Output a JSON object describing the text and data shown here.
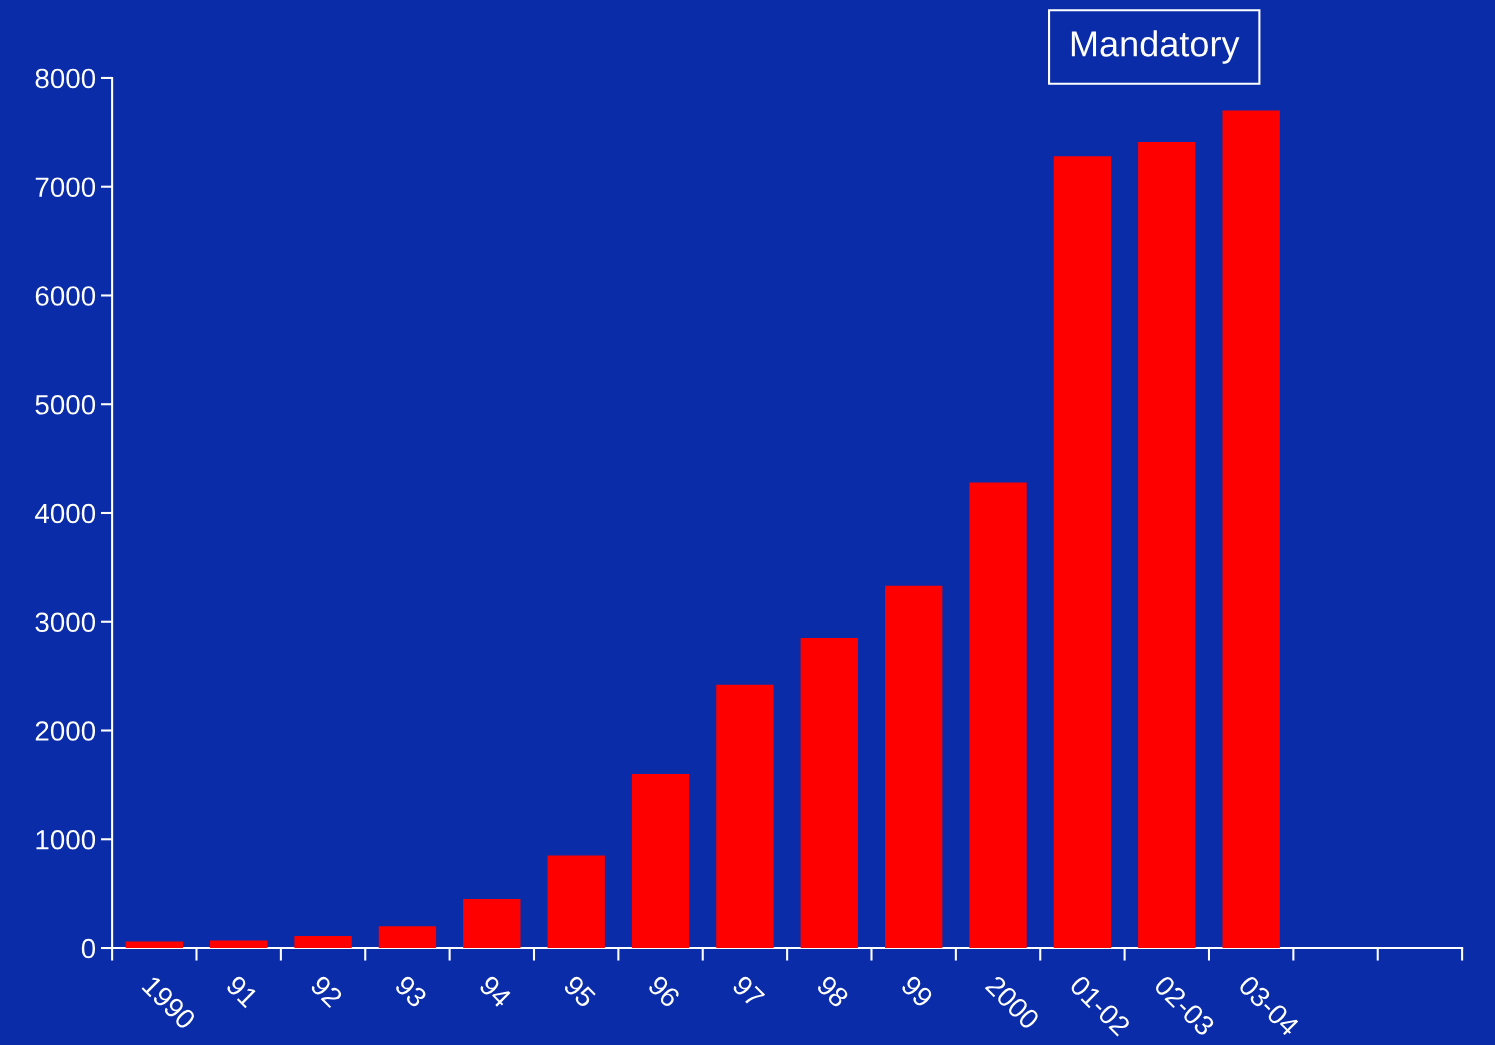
{
  "chart_data": {
    "type": "bar",
    "categories": [
      "1990",
      "91",
      "92",
      "93",
      "94",
      "95",
      "96",
      "97",
      "98",
      "99",
      "2000",
      "01-02",
      "02-03",
      "03-04",
      null,
      null
    ],
    "values": [
      60,
      70,
      110,
      200,
      450,
      850,
      1600,
      2420,
      2850,
      3330,
      4280,
      7280,
      7410,
      7700,
      null,
      null
    ],
    "color": "#ff0000",
    "ylim": [
      0,
      8000
    ],
    "yticks": [
      0,
      1000,
      2000,
      3000,
      4000,
      5000,
      6000,
      7000,
      8000
    ],
    "annotations": [
      "Mandatory"
    ],
    "grid": false,
    "legend": false
  }
}
